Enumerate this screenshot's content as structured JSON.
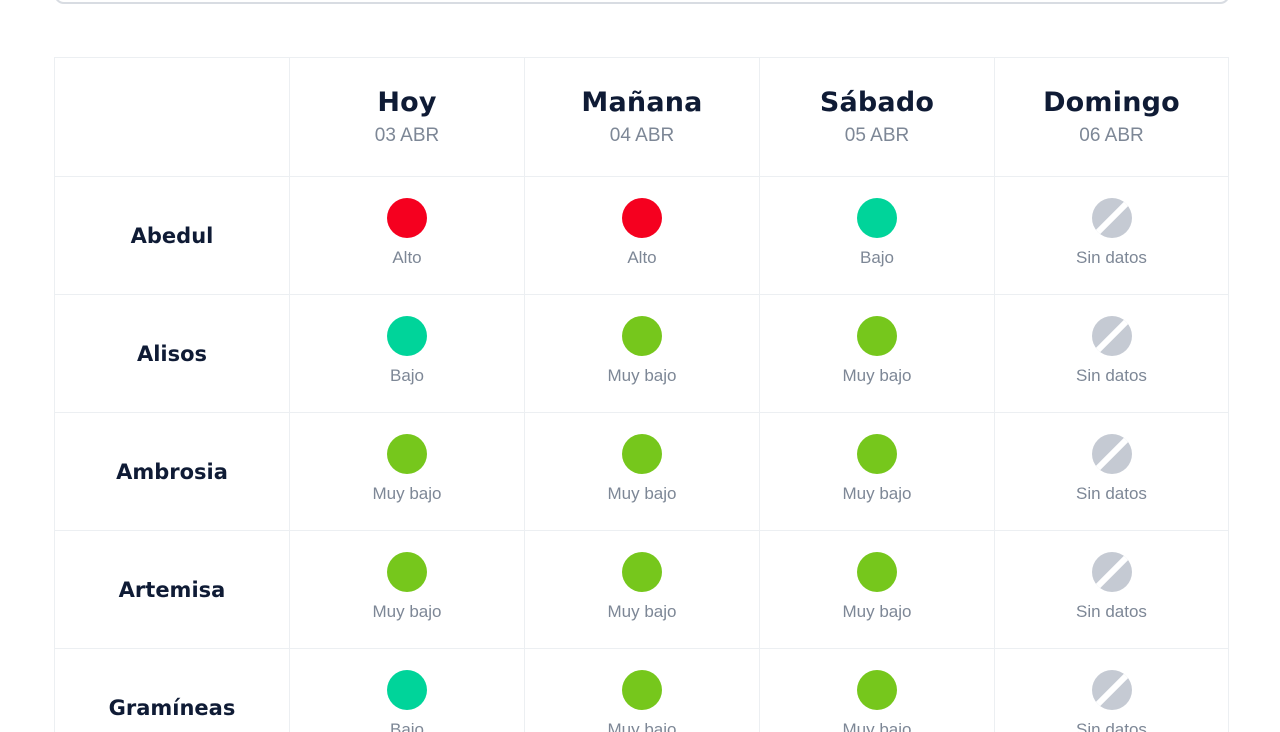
{
  "days": [
    {
      "name": "Hoy",
      "date": "03 ABR"
    },
    {
      "name": "Mañana",
      "date": "04 ABR"
    },
    {
      "name": "Sábado",
      "date": "05 ABR"
    },
    {
      "name": "Domingo",
      "date": "06 ABR"
    }
  ],
  "level_colors": {
    "Alto": "#f5001f",
    "Bajo": "#00d49a",
    "Muy bajo": "#76c71c",
    "Sin datos": "#c5cad3"
  },
  "rows": [
    {
      "plant": "Abedul",
      "levels": [
        "Alto",
        "Alto",
        "Bajo",
        "Sin datos"
      ]
    },
    {
      "plant": "Alisos",
      "levels": [
        "Bajo",
        "Muy bajo",
        "Muy bajo",
        "Sin datos"
      ]
    },
    {
      "plant": "Ambrosia",
      "levels": [
        "Muy bajo",
        "Muy bajo",
        "Muy bajo",
        "Sin datos"
      ]
    },
    {
      "plant": "Artemisa",
      "levels": [
        "Muy bajo",
        "Muy bajo",
        "Muy bajo",
        "Sin datos"
      ]
    },
    {
      "plant": "Gramíneas",
      "levels": [
        "Bajo",
        "Muy bajo",
        "Muy bajo",
        "Sin datos"
      ]
    }
  ]
}
